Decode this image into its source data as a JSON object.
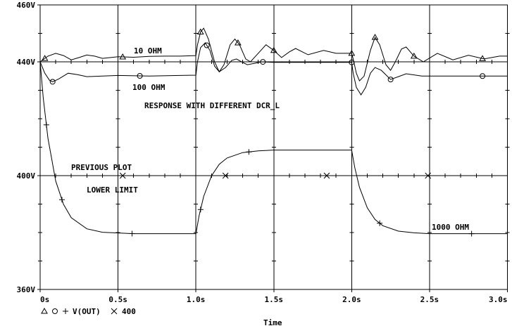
{
  "chart_data": {
    "type": "line",
    "xlabel": "Time",
    "ylabel": "",
    "xlim": [
      0,
      3.0
    ],
    "ylim": [
      360,
      460
    ],
    "x_ticks": [
      0,
      0.5,
      1.0,
      1.5,
      2.0,
      2.5,
      3.0
    ],
    "x_tick_labels": [
      "0s",
      "0.5s",
      "1.0s",
      "1.5s",
      "2.0s",
      "2.5s",
      "3.0s"
    ],
    "y_ticks": [
      460,
      440,
      400,
      360
    ],
    "y_tick_labels": [
      "460V",
      "440V",
      "400V",
      "360V"
    ],
    "grid": true,
    "legend": {
      "placement": "bottom-left",
      "markers": [
        "triangle",
        "circle",
        "plus"
      ],
      "text": "V(OUT)",
      "extra_marker": "cross",
      "extra_text": "400"
    },
    "annotations": {
      "ohm10": "10 OHM",
      "ohm100": "100 OHM",
      "title": "RESPONSE WITH DIFFERENT DCR_L",
      "previous": "PREVIOUS PLOT",
      "lower": "LOWER LIMIT",
      "ohm1000": "1000 OHM"
    },
    "series": [
      {
        "marker": "triangle",
        "points": [
          [
            0,
            440
          ],
          [
            0.05,
            442
          ],
          [
            0.1,
            443
          ],
          [
            0.15,
            442.2
          ],
          [
            0.2,
            440.7
          ],
          [
            0.25,
            441.5
          ],
          [
            0.3,
            442.4
          ],
          [
            0.35,
            442
          ],
          [
            0.4,
            441.2
          ],
          [
            0.5,
            441.8
          ],
          [
            0.6,
            441.6
          ],
          [
            0.7,
            441.9
          ],
          [
            0.8,
            442
          ],
          [
            0.9,
            442
          ],
          [
            1.0,
            442.2
          ],
          [
            1.01,
            446
          ],
          [
            1.03,
            450.5
          ],
          [
            1.05,
            451.8
          ],
          [
            1.08,
            448
          ],
          [
            1.12,
            440
          ],
          [
            1.15,
            436.5
          ],
          [
            1.18,
            439
          ],
          [
            1.22,
            446
          ],
          [
            1.25,
            448
          ],
          [
            1.28,
            446
          ],
          [
            1.32,
            441
          ],
          [
            1.35,
            440
          ],
          [
            1.4,
            443
          ],
          [
            1.45,
            446
          ],
          [
            1.5,
            444
          ],
          [
            1.55,
            441.5
          ],
          [
            1.6,
            443.5
          ],
          [
            1.64,
            444.7
          ],
          [
            1.72,
            442.5
          ],
          [
            1.82,
            444
          ],
          [
            1.9,
            443
          ],
          [
            2.0,
            443
          ],
          [
            2.01,
            441
          ],
          [
            2.03,
            436
          ],
          [
            2.05,
            433.3
          ],
          [
            2.08,
            435
          ],
          [
            2.12,
            444
          ],
          [
            2.15,
            448.6
          ],
          [
            2.18,
            446
          ],
          [
            2.22,
            439
          ],
          [
            2.25,
            437
          ],
          [
            2.28,
            440
          ],
          [
            2.32,
            444.5
          ],
          [
            2.35,
            445.2
          ],
          [
            2.4,
            442
          ],
          [
            2.46,
            440
          ],
          [
            2.55,
            443
          ],
          [
            2.65,
            440.7
          ],
          [
            2.75,
            442.3
          ],
          [
            2.85,
            441
          ],
          [
            2.95,
            442
          ],
          [
            3.0,
            442
          ]
        ],
        "marker_t": [
          0.03,
          0.53,
          1.03,
          1.27,
          1.5,
          2.0,
          2.15,
          2.4,
          2.84
        ]
      },
      {
        "marker": "circle",
        "points": [
          [
            0,
            440
          ],
          [
            0.03,
            436
          ],
          [
            0.06,
            433.5
          ],
          [
            0.08,
            433
          ],
          [
            0.12,
            434
          ],
          [
            0.18,
            436
          ],
          [
            0.24,
            435.5
          ],
          [
            0.3,
            434.8
          ],
          [
            0.4,
            435
          ],
          [
            0.5,
            435.2
          ],
          [
            0.7,
            435
          ],
          [
            0.9,
            435.2
          ],
          [
            1.0,
            435.3
          ],
          [
            1.01,
            440
          ],
          [
            1.03,
            445
          ],
          [
            1.06,
            446.7
          ],
          [
            1.09,
            444
          ],
          [
            1.12,
            438.5
          ],
          [
            1.15,
            436.5
          ],
          [
            1.19,
            438
          ],
          [
            1.23,
            440.5
          ],
          [
            1.26,
            441
          ],
          [
            1.3,
            439.8
          ],
          [
            1.33,
            439
          ],
          [
            1.38,
            439.5
          ],
          [
            1.42,
            440
          ],
          [
            1.5,
            439.8
          ],
          [
            2.0,
            439.8
          ],
          [
            2.01,
            436
          ],
          [
            2.03,
            431
          ],
          [
            2.06,
            428.4
          ],
          [
            2.09,
            431
          ],
          [
            2.12,
            436
          ],
          [
            2.15,
            438
          ],
          [
            2.19,
            437
          ],
          [
            2.25,
            433.8
          ],
          [
            2.3,
            434.8
          ],
          [
            2.35,
            435.8
          ],
          [
            2.45,
            435
          ],
          [
            3.0,
            435
          ]
        ],
        "marker_t": [
          0.08,
          0.64,
          1.07,
          1.43,
          2.0,
          2.25,
          2.84
        ]
      },
      {
        "marker": "plus",
        "points": [
          [
            0,
            440
          ],
          [
            0.02,
            427.3
          ],
          [
            0.05,
            413.1
          ],
          [
            0.1,
            398.1
          ],
          [
            0.15,
            389.9
          ],
          [
            0.2,
            385.2
          ],
          [
            0.3,
            381.3
          ],
          [
            0.4,
            380.1
          ],
          [
            0.6,
            379.6
          ],
          [
            1.0,
            379.6
          ],
          [
            1.02,
            385.8
          ],
          [
            1.05,
            392.7
          ],
          [
            1.1,
            399.9
          ],
          [
            1.15,
            404
          ],
          [
            1.2,
            406.2
          ],
          [
            1.3,
            408.1
          ],
          [
            1.4,
            408.7
          ],
          [
            1.5,
            409
          ],
          [
            2.0,
            409
          ],
          [
            2.02,
            402.8
          ],
          [
            2.05,
            395.9
          ],
          [
            2.1,
            388.7
          ],
          [
            2.15,
            384.6
          ],
          [
            2.2,
            382.4
          ],
          [
            2.3,
            380.5
          ],
          [
            2.4,
            379.9
          ],
          [
            2.5,
            379.6
          ],
          [
            3.0,
            379.6
          ]
        ],
        "marker_t": [
          0.04,
          0.14,
          0.59,
          1.03,
          1.34,
          2.18,
          2.77
        ]
      },
      {
        "marker": "cross",
        "points": [
          [
            0,
            400
          ],
          [
            3.0,
            400
          ]
        ],
        "marker_t": [
          0.53,
          1.19,
          1.84,
          2.49
        ]
      }
    ]
  }
}
